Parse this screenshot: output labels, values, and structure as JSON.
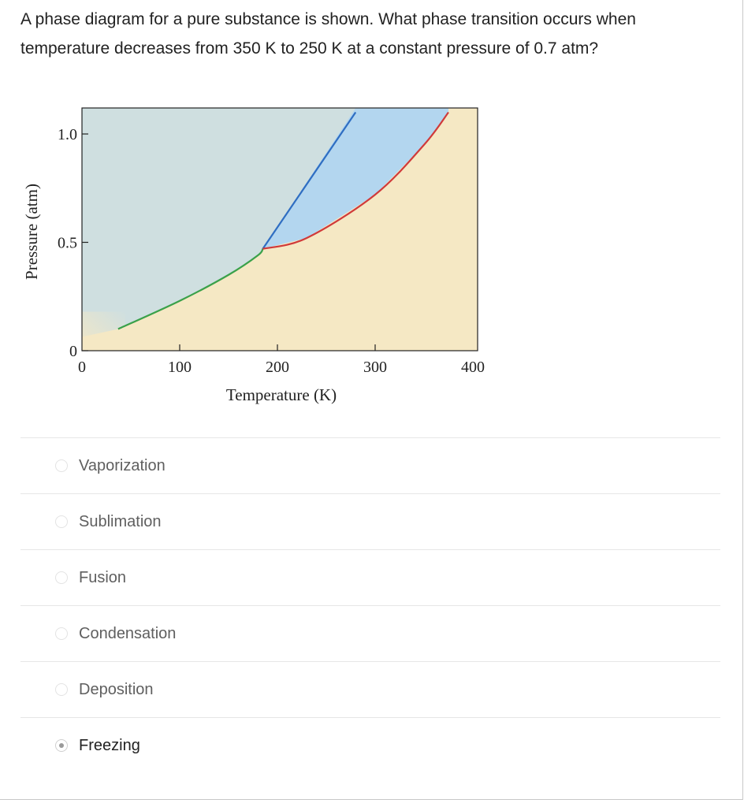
{
  "question": {
    "text": "A phase diagram for a pure substance is shown.  What phase transition occurs when temperature decreases from 350 K to 250 K at a constant pressure of 0.7 atm?"
  },
  "chart_data": {
    "type": "phase-diagram",
    "xlabel": "Temperature (K)",
    "ylabel": "Pressure (atm)",
    "xlim": [
      0,
      400
    ],
    "ylim": [
      0,
      1.1
    ],
    "x_ticks": [
      "0",
      "100",
      "200",
      "300",
      "400"
    ],
    "y_ticks": [
      "0",
      "0.5",
      "1.0"
    ],
    "regions": {
      "solid": "#cfdfe0",
      "liquid": "#b3d6ef",
      "gas": "#f5e8c4"
    },
    "curves": [
      {
        "name": "sublimation",
        "color": "#3aa14a",
        "points": [
          [
            37,
            0.1
          ],
          [
            100,
            0.23
          ],
          [
            150,
            0.35
          ],
          [
            180,
            0.44
          ],
          [
            185,
            0.47
          ]
        ]
      },
      {
        "name": "fusion",
        "color": "#2f6ec2",
        "points": [
          [
            185,
            0.47
          ],
          [
            280,
            1.1
          ]
        ]
      },
      {
        "name": "vaporization",
        "color": "#d03a3a",
        "points": [
          [
            185,
            0.47
          ],
          [
            230,
            0.52
          ],
          [
            300,
            0.72
          ],
          [
            350,
            0.95
          ],
          [
            375,
            1.1
          ]
        ]
      }
    ]
  },
  "options": [
    {
      "label": "Vaporization",
      "selected": false
    },
    {
      "label": "Sublimation",
      "selected": false
    },
    {
      "label": "Fusion",
      "selected": false
    },
    {
      "label": "Condensation",
      "selected": false
    },
    {
      "label": "Deposition",
      "selected": false
    },
    {
      "label": "Freezing",
      "selected": true
    }
  ]
}
